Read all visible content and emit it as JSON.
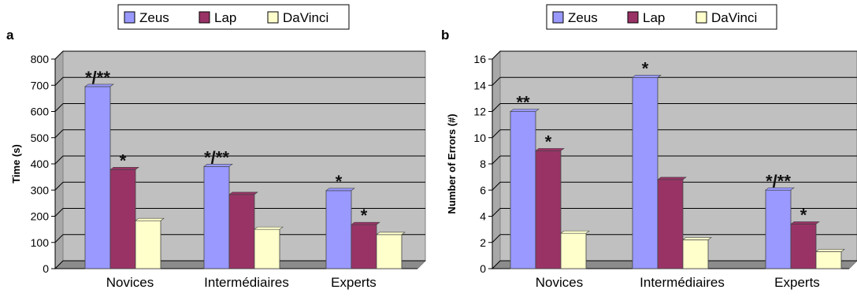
{
  "chart_data": [
    {
      "panel_label": "a",
      "type": "bar",
      "categories": [
        "Novices",
        "Intermédiaires",
        "Experts"
      ],
      "series": [
        {
          "name": "Zeus",
          "values": [
            695,
            390,
            298
          ],
          "color": "#9999ff"
        },
        {
          "name": "Lap",
          "values": [
            378,
            283,
            168
          ],
          "color": "#993366"
        },
        {
          "name": "DaVinci",
          "values": [
            183,
            150,
            130
          ],
          "color": "#ffffcc"
        }
      ],
      "annotations": [
        [
          "*/**",
          "*/**",
          "*"
        ],
        [
          "*",
          "",
          "*"
        ],
        [
          "",
          "",
          ""
        ]
      ],
      "ylabel": "Time (s)",
      "ylim": [
        0,
        800
      ],
      "yticks": [
        0,
        100,
        200,
        300,
        400,
        500,
        600,
        700,
        800
      ],
      "grid": true,
      "legend": "top",
      "plot_bg": "#c0c0c0"
    },
    {
      "panel_label": "b",
      "type": "bar",
      "categories": [
        "Novices",
        "Intermédiaires",
        "Experts"
      ],
      "series": [
        {
          "name": "Zeus",
          "values": [
            12,
            14.6,
            6
          ],
          "color": "#9999ff"
        },
        {
          "name": "Lap",
          "values": [
            9,
            6.8,
            3.4
          ],
          "color": "#993366"
        },
        {
          "name": "DaVinci",
          "values": [
            2.7,
            2.2,
            1.3
          ],
          "color": "#ffffcc"
        }
      ],
      "annotations": [
        [
          "**",
          "*",
          "*/**"
        ],
        [
          "*",
          "",
          "*"
        ],
        [
          "",
          "",
          ""
        ]
      ],
      "ylabel": "Number of Errors (#)",
      "ylim": [
        0,
        16
      ],
      "yticks": [
        0,
        2,
        4,
        6,
        8,
        10,
        12,
        14,
        16
      ],
      "grid": true,
      "legend": "top",
      "plot_bg": "#c0c0c0"
    }
  ]
}
